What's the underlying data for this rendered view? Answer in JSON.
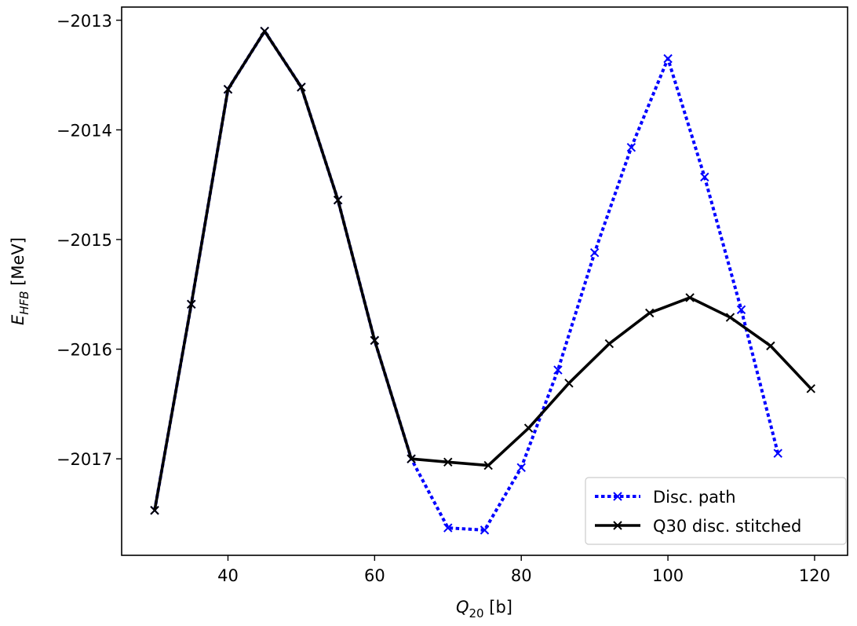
{
  "chart_data": {
    "type": "line",
    "xlabel": "Q20 [b]",
    "ylabel": "EHFB [MeV]",
    "xlabel_parts": {
      "main": "Q",
      "sub": "20",
      "rest": " [b]"
    },
    "ylabel_parts": {
      "main": "E",
      "sub": "HFB",
      "rest": " [MeV]"
    },
    "xlim": [
      25.5,
      124.5
    ],
    "ylim": [
      -2017.88,
      -2012.88
    ],
    "xticks": [
      40,
      60,
      80,
      100,
      120
    ],
    "yticks": [
      -2013,
      -2014,
      -2015,
      -2016,
      -2017
    ],
    "xtick_labels": [
      "40",
      "60",
      "80",
      "100",
      "120"
    ],
    "ytick_labels": [
      "−2013",
      "−2014",
      "−2015",
      "−2016",
      "−2017"
    ],
    "grid": false,
    "legend_position": "lower right",
    "series": [
      {
        "name": "Disc. path",
        "color": "#0000ff",
        "style": "dotted",
        "marker": "x",
        "x": [
          30,
          35,
          40,
          45,
          50,
          55,
          60,
          65,
          70,
          75,
          80,
          85,
          90,
          95,
          100,
          105,
          110,
          115
        ],
        "y": [
          -2017.47,
          -2015.59,
          -2013.63,
          -2013.1,
          -2013.61,
          -2014.64,
          -2015.92,
          -2017.0,
          -2017.63,
          -2017.65,
          -2017.08,
          -2016.19,
          -2015.12,
          -2014.16,
          -2013.35,
          -2014.43,
          -2015.64,
          -2016.95
        ]
      },
      {
        "name": "Q30 disc. stitched",
        "color": "#000000",
        "style": "solid",
        "marker": "x",
        "x": [
          30,
          35,
          40,
          45,
          50,
          55,
          60,
          65,
          70,
          75.5,
          81,
          86.5,
          92,
          97.5,
          103,
          108.5,
          114,
          119.5
        ],
        "y": [
          -2017.47,
          -2015.59,
          -2013.63,
          -2013.1,
          -2013.61,
          -2014.64,
          -2015.92,
          -2017.0,
          -2017.03,
          -2017.06,
          -2016.72,
          -2016.31,
          -2015.95,
          -2015.67,
          -2015.53,
          -2015.71,
          -2015.97,
          -2016.36
        ]
      }
    ]
  }
}
